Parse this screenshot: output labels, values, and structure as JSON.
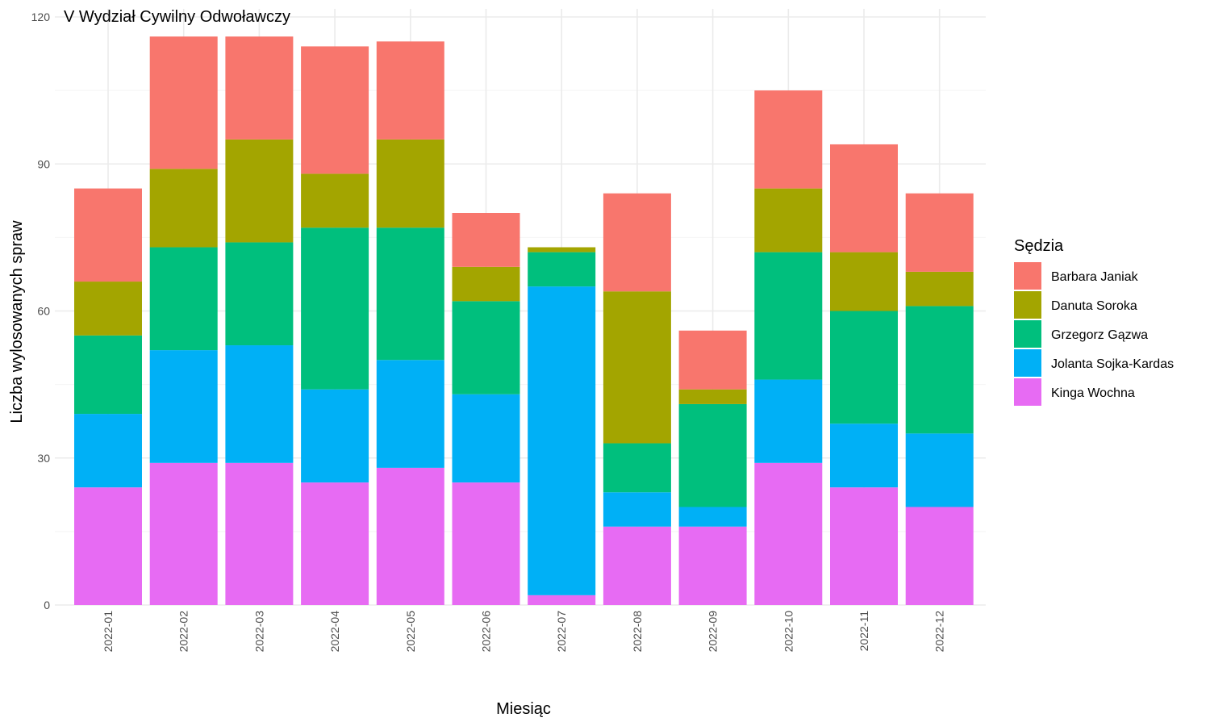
{
  "chart_data": {
    "type": "bar",
    "stacked": true,
    "title": "V Wydział Cywilny Odwoławczy",
    "xlabel": "Miesiąc",
    "ylabel": "Liczba wylosowanych spraw",
    "ylim": [
      0,
      120
    ],
    "yticks": [
      "0",
      "30",
      "60",
      "90",
      "120"
    ],
    "grid": true,
    "legend": {
      "title": "Sędzia",
      "position": "right"
    },
    "categories": [
      "2022-01",
      "2022-02",
      "2022-03",
      "2022-04",
      "2022-05",
      "2022-06",
      "2022-07",
      "2022-08",
      "2022-09",
      "2022-10",
      "2022-11",
      "2022-12"
    ],
    "series": [
      {
        "name": "Kinga Wochna",
        "color": "#E76BF3",
        "values": [
          24,
          29,
          29,
          25,
          28,
          25,
          2,
          16,
          16,
          29,
          24,
          20
        ]
      },
      {
        "name": "Jolanta Sojka-Kardas",
        "color": "#00B0F6",
        "values": [
          15,
          23,
          24,
          19,
          22,
          18,
          63,
          7,
          4,
          17,
          13,
          15
        ]
      },
      {
        "name": "Grzegorz Gązwa",
        "color": "#00BF7D",
        "values": [
          16,
          21,
          21,
          33,
          27,
          19,
          7,
          10,
          21,
          26,
          23,
          26
        ]
      },
      {
        "name": "Danuta Soroka",
        "color": "#A3A500",
        "values": [
          11,
          16,
          21,
          11,
          18,
          7,
          1,
          31,
          3,
          13,
          12,
          7
        ]
      },
      {
        "name": "Barbara Janiak",
        "color": "#F8766D",
        "values": [
          19,
          27,
          21,
          26,
          20,
          11,
          0,
          20,
          12,
          20,
          22,
          16
        ]
      }
    ],
    "legend_order": [
      "Barbara Janiak",
      "Danuta Soroka",
      "Grzegorz Gązwa",
      "Jolanta Sojka-Kardas",
      "Kinga Wochna"
    ]
  }
}
